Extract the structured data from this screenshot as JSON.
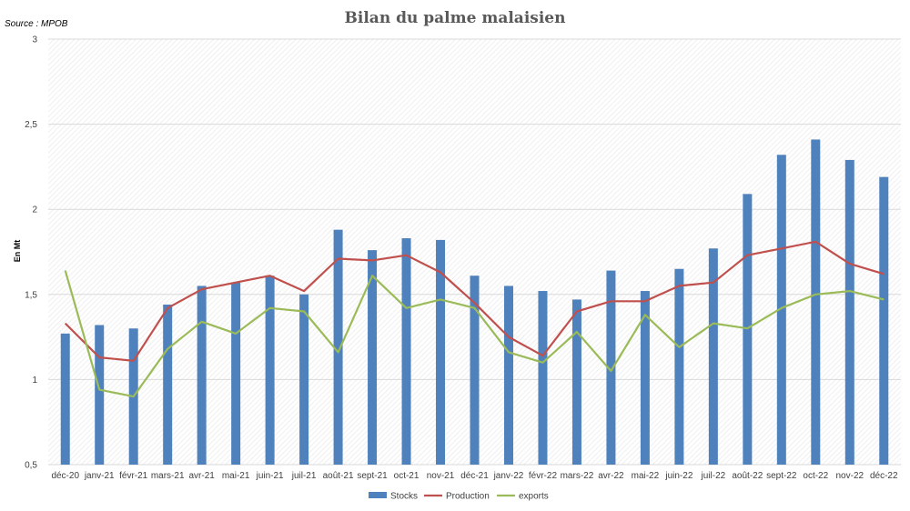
{
  "chart_data": {
    "type": "bar",
    "title": "Bilan du palme malaisien",
    "source": "Source : MPOB",
    "xlabel": "",
    "ylabel": "En Mt",
    "ylim": [
      0.5,
      3
    ],
    "yticks": [
      "0,5",
      "1",
      "1,5",
      "2",
      "2,5",
      "3"
    ],
    "ytick_values": [
      0.5,
      1,
      1.5,
      2,
      2.5,
      3
    ],
    "grid": true,
    "legend": "bottom",
    "categories": [
      "déc-20",
      "janv-21",
      "févr-21",
      "mars-21",
      "avr-21",
      "mai-21",
      "juin-21",
      "juil-21",
      "août-21",
      "sept-21",
      "oct-21",
      "nov-21",
      "déc-21",
      "janv-22",
      "févr-22",
      "mars-22",
      "avr-22",
      "mai-22",
      "juin-22",
      "juil-22",
      "août-22",
      "sept-22",
      "oct-22",
      "nov-22",
      "déc-22"
    ],
    "series": [
      {
        "name": "Stocks",
        "type": "bar",
        "color": "#4f81bd",
        "values": [
          1.27,
          1.32,
          1.3,
          1.44,
          1.55,
          1.57,
          1.61,
          1.5,
          1.88,
          1.76,
          1.83,
          1.82,
          1.61,
          1.55,
          1.52,
          1.47,
          1.64,
          1.52,
          1.65,
          1.77,
          2.09,
          2.32,
          2.41,
          2.29,
          2.19
        ]
      },
      {
        "name": "Production",
        "type": "line",
        "color": "#c0504d",
        "values": [
          1.33,
          1.13,
          1.11,
          1.42,
          1.53,
          1.57,
          1.61,
          1.52,
          1.71,
          1.7,
          1.73,
          1.63,
          1.45,
          1.25,
          1.14,
          1.4,
          1.46,
          1.46,
          1.55,
          1.57,
          1.73,
          1.77,
          1.81,
          1.68,
          1.62
        ]
      },
      {
        "name": "exports",
        "type": "line",
        "color": "#9bbb59",
        "values": [
          1.64,
          0.94,
          0.9,
          1.18,
          1.34,
          1.27,
          1.42,
          1.4,
          1.16,
          1.61,
          1.42,
          1.47,
          1.42,
          1.16,
          1.1,
          1.28,
          1.05,
          1.38,
          1.19,
          1.33,
          1.3,
          1.42,
          1.5,
          1.52,
          1.47
        ]
      }
    ]
  }
}
